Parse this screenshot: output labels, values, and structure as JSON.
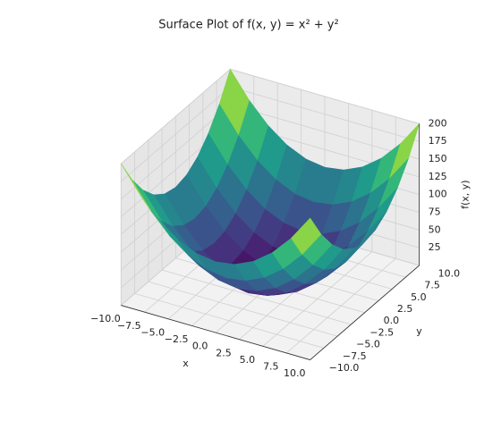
{
  "chart_data": {
    "type": "surface3d",
    "title": "Surface Plot of f(x, y) = x² + y²",
    "x_label": "x",
    "y_label": "y",
    "z_label": "f(x, y)",
    "colormap": "viridis",
    "x": [
      -10,
      -8,
      -6,
      -4,
      -2,
      0,
      2,
      4,
      6,
      8,
      10
    ],
    "y": [
      -10,
      -8,
      -6,
      -4,
      -2,
      0,
      2,
      4,
      6,
      8,
      10
    ],
    "z": [
      [
        200,
        164,
        136,
        116,
        104,
        100,
        104,
        116,
        136,
        164,
        200
      ],
      [
        164,
        128,
        100,
        80,
        68,
        64,
        68,
        80,
        100,
        128,
        164
      ],
      [
        136,
        100,
        72,
        52,
        40,
        36,
        40,
        52,
        72,
        100,
        136
      ],
      [
        116,
        80,
        52,
        32,
        20,
        16,
        20,
        32,
        52,
        80,
        116
      ],
      [
        104,
        68,
        40,
        20,
        8,
        4,
        8,
        20,
        40,
        68,
        104
      ],
      [
        100,
        64,
        36,
        16,
        4,
        0,
        4,
        16,
        36,
        64,
        100
      ],
      [
        104,
        68,
        40,
        20,
        8,
        4,
        8,
        20,
        40,
        68,
        104
      ],
      [
        116,
        80,
        52,
        32,
        20,
        16,
        20,
        32,
        52,
        80,
        116
      ],
      [
        136,
        100,
        72,
        52,
        40,
        36,
        40,
        52,
        72,
        100,
        136
      ],
      [
        164,
        128,
        100,
        80,
        68,
        64,
        68,
        80,
        100,
        128,
        164
      ],
      [
        200,
        164,
        136,
        116,
        104,
        100,
        104,
        116,
        136,
        164,
        200
      ]
    ],
    "xlim": [
      -10,
      10
    ],
    "ylim": [
      -10,
      10
    ],
    "zlim": [
      0,
      200
    ],
    "xticks": [
      {
        "value": -10,
        "label": "−10.0"
      },
      {
        "value": -7.5,
        "label": "−7.5"
      },
      {
        "value": -5,
        "label": "−5.0"
      },
      {
        "value": -2.5,
        "label": "−2.5"
      },
      {
        "value": 0,
        "label": "0.0"
      },
      {
        "value": 2.5,
        "label": "2.5"
      },
      {
        "value": 5,
        "label": "5.0"
      },
      {
        "value": 7.5,
        "label": "7.5"
      },
      {
        "value": 10,
        "label": "10.0"
      }
    ],
    "yticks": [
      {
        "value": -10,
        "label": "−10.0"
      },
      {
        "value": -7.5,
        "label": "−7.5"
      },
      {
        "value": -5,
        "label": "−5.0"
      },
      {
        "value": -2.5,
        "label": "−2.5"
      },
      {
        "value": 0,
        "label": "0.0"
      },
      {
        "value": 2.5,
        "label": "2.5"
      },
      {
        "value": 5,
        "label": "5.0"
      },
      {
        "value": 7.5,
        "label": "7.5"
      },
      {
        "value": 10,
        "label": "10.0"
      }
    ],
    "zticks": [
      25,
      50,
      75,
      100,
      125,
      150,
      175,
      200
    ],
    "grid": true
  }
}
